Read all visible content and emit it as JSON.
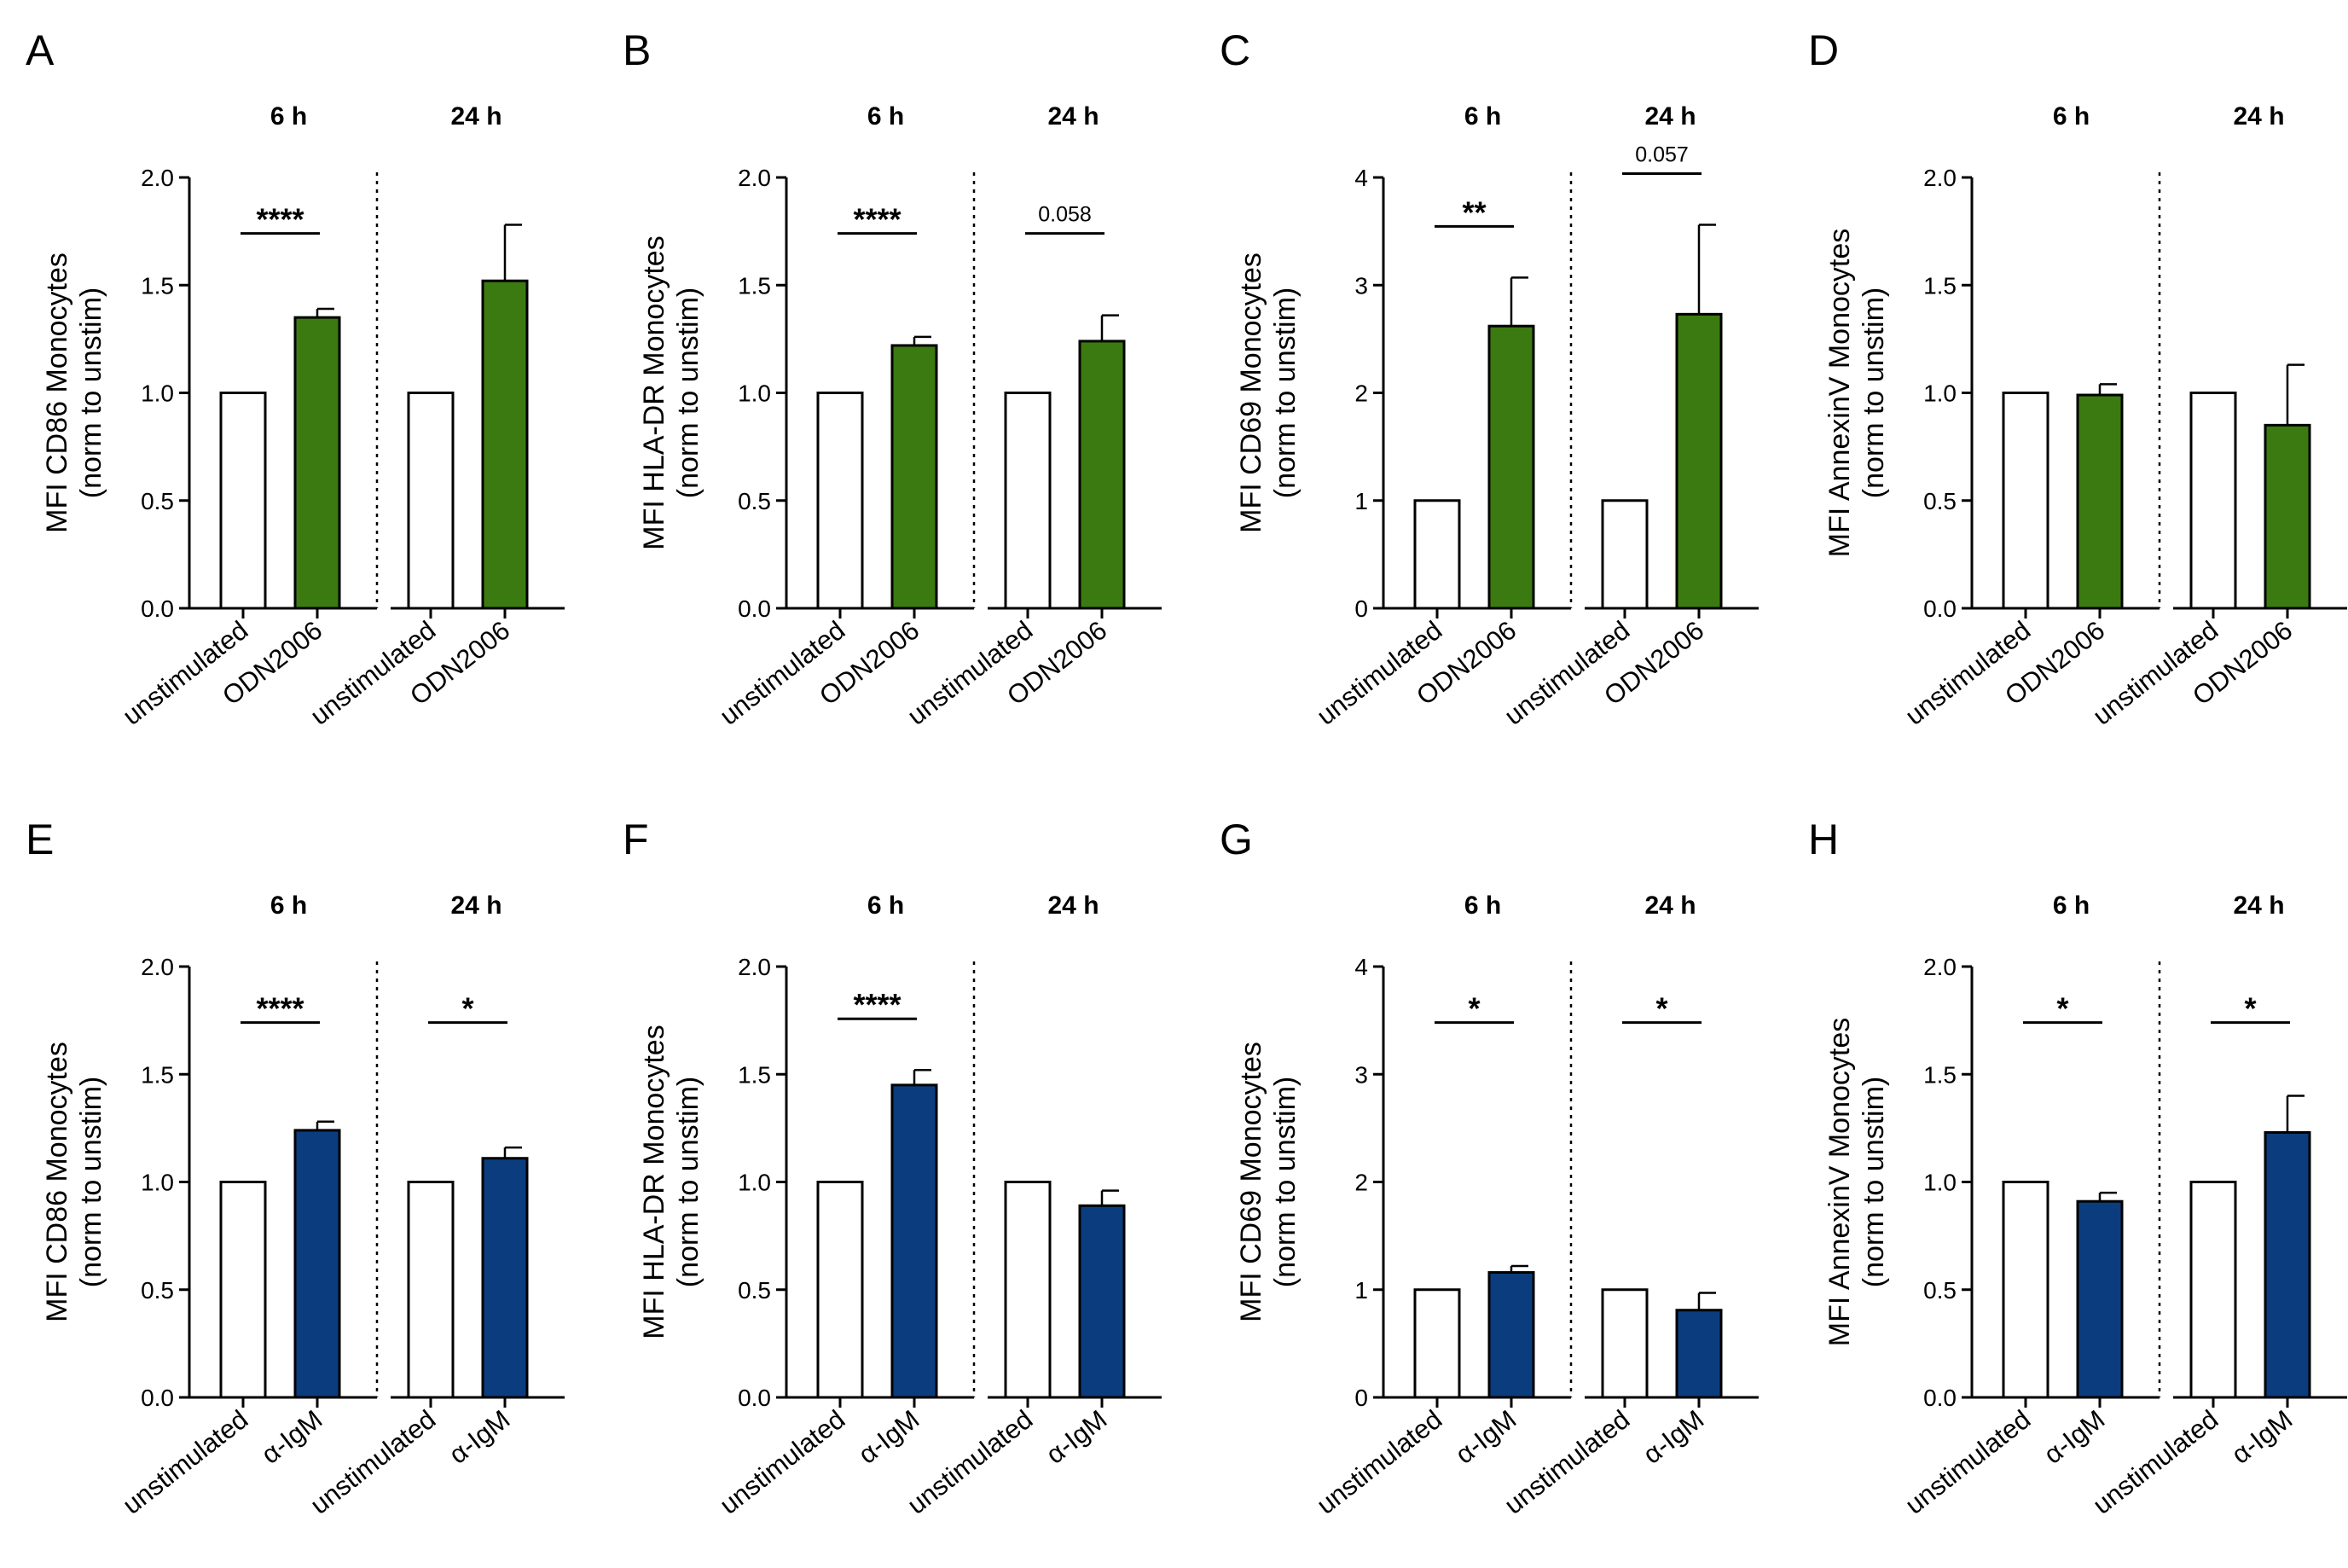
{
  "colors": {
    "unstimulated": "#ffffff",
    "ODN2006": "#3b7a10",
    "alpha_IgM": "#0b3d7e",
    "axis": "#000000"
  },
  "chart_data": [
    {
      "panel": "A",
      "type": "bar",
      "ylabel": [
        "MFI CD86 Monocytes",
        "(norm to unstim)"
      ],
      "ylim": [
        0,
        2.0
      ],
      "yticks": [
        "0.0",
        "0.5",
        "1.0",
        "1.5",
        "2.0"
      ],
      "groups": [
        {
          "time": "6 h",
          "significance": "****",
          "bars": [
            {
              "label": "unstimulated",
              "value": 1.0,
              "error": 0,
              "color_key": "unstimulated"
            },
            {
              "label": "ODN2006",
              "value": 1.35,
              "error": 0.04,
              "color_key": "ODN2006"
            }
          ]
        },
        {
          "time": "24 h",
          "significance": "",
          "bars": [
            {
              "label": "unstimulated",
              "value": 1.0,
              "error": 0,
              "color_key": "unstimulated"
            },
            {
              "label": "ODN2006",
              "value": 1.52,
              "error": 0.26,
              "color_key": "ODN2006"
            }
          ]
        }
      ]
    },
    {
      "panel": "B",
      "type": "bar",
      "ylabel": [
        "MFI HLA-DR Monocytes",
        "(norm to unstim)"
      ],
      "ylim": [
        0,
        2.0
      ],
      "yticks": [
        "0.0",
        "0.5",
        "1.0",
        "1.5",
        "2.0"
      ],
      "groups": [
        {
          "time": "6 h",
          "significance": "****",
          "bars": [
            {
              "label": "unstimulated",
              "value": 1.0,
              "error": 0,
              "color_key": "unstimulated"
            },
            {
              "label": "ODN2006",
              "value": 1.22,
              "error": 0.04,
              "color_key": "ODN2006"
            }
          ]
        },
        {
          "time": "24 h",
          "significance": "0.058",
          "bars": [
            {
              "label": "unstimulated",
              "value": 1.0,
              "error": 0,
              "color_key": "unstimulated"
            },
            {
              "label": "ODN2006",
              "value": 1.24,
              "error": 0.12,
              "color_key": "ODN2006"
            }
          ]
        }
      ]
    },
    {
      "panel": "C",
      "type": "bar",
      "ylabel": [
        "MFI CD69 Monocytes",
        "(norm to unstim)"
      ],
      "ylim": [
        0,
        4
      ],
      "yticks": [
        "0",
        "1",
        "2",
        "3",
        "4"
      ],
      "groups": [
        {
          "time": "6 h",
          "significance": "**",
          "bars": [
            {
              "label": "unstimulated",
              "value": 1.0,
              "error": 0,
              "color_key": "unstimulated"
            },
            {
              "label": "ODN2006",
              "value": 2.62,
              "error": 0.45,
              "color_key": "ODN2006"
            }
          ]
        },
        {
          "time": "24 h",
          "significance": "0.057",
          "bars": [
            {
              "label": "unstimulated",
              "value": 1.0,
              "error": 0,
              "color_key": "unstimulated"
            },
            {
              "label": "ODN2006",
              "value": 2.73,
              "error": 0.83,
              "color_key": "ODN2006"
            }
          ]
        }
      ]
    },
    {
      "panel": "D",
      "type": "bar",
      "ylabel": [
        "MFI AnnexinV Monocytes",
        "(norm to unstim)"
      ],
      "ylim": [
        0,
        2.0
      ],
      "yticks": [
        "0.0",
        "0.5",
        "1.0",
        "1.5",
        "2.0"
      ],
      "groups": [
        {
          "time": "6 h",
          "significance": "",
          "bars": [
            {
              "label": "unstimulated",
              "value": 1.0,
              "error": 0,
              "color_key": "unstimulated"
            },
            {
              "label": "ODN2006",
              "value": 0.99,
              "error": 0.05,
              "color_key": "ODN2006"
            }
          ]
        },
        {
          "time": "24 h",
          "significance": "",
          "bars": [
            {
              "label": "unstimulated",
              "value": 1.0,
              "error": 0,
              "color_key": "unstimulated"
            },
            {
              "label": "ODN2006",
              "value": 0.85,
              "error": 0.28,
              "color_key": "ODN2006"
            }
          ]
        }
      ]
    },
    {
      "panel": "E",
      "type": "bar",
      "ylabel": [
        "MFI CD86 Monocytes",
        "(norm to unstim)"
      ],
      "ylim": [
        0,
        2.0
      ],
      "yticks": [
        "0.0",
        "0.5",
        "1.0",
        "1.5",
        "2.0"
      ],
      "groups": [
        {
          "time": "6 h",
          "significance": "****",
          "bars": [
            {
              "label": "unstimulated",
              "value": 1.0,
              "error": 0,
              "color_key": "unstimulated"
            },
            {
              "label": "α-IgM",
              "value": 1.24,
              "error": 0.04,
              "color_key": "alpha_IgM"
            }
          ]
        },
        {
          "time": "24 h",
          "significance": "*",
          "bars": [
            {
              "label": "unstimulated",
              "value": 1.0,
              "error": 0,
              "color_key": "unstimulated"
            },
            {
              "label": "α-IgM",
              "value": 1.11,
              "error": 0.05,
              "color_key": "alpha_IgM"
            }
          ]
        }
      ]
    },
    {
      "panel": "F",
      "type": "bar",
      "ylabel": [
        "MFI HLA-DR Monocytes",
        "(norm to unstim)"
      ],
      "ylim": [
        0,
        2.0
      ],
      "yticks": [
        "0.0",
        "0.5",
        "1.0",
        "1.5",
        "2.0"
      ],
      "groups": [
        {
          "time": "6 h",
          "significance": "****",
          "bars": [
            {
              "label": "unstimulated",
              "value": 1.0,
              "error": 0,
              "color_key": "unstimulated"
            },
            {
              "label": "α-IgM",
              "value": 1.45,
              "error": 0.07,
              "color_key": "alpha_IgM"
            }
          ]
        },
        {
          "time": "24 h",
          "significance": "",
          "bars": [
            {
              "label": "unstimulated",
              "value": 1.0,
              "error": 0,
              "color_key": "unstimulated"
            },
            {
              "label": "α-IgM",
              "value": 0.89,
              "error": 0.07,
              "color_key": "alpha_IgM"
            }
          ]
        }
      ]
    },
    {
      "panel": "G",
      "type": "bar",
      "ylabel": [
        "MFI CD69 Monocytes",
        "(norm to unstim)"
      ],
      "ylim": [
        0,
        4
      ],
      "yticks": [
        "0",
        "1",
        "2",
        "3",
        "4"
      ],
      "groups": [
        {
          "time": "6 h",
          "significance": "*",
          "bars": [
            {
              "label": "unstimulated",
              "value": 1.0,
              "error": 0,
              "color_key": "unstimulated"
            },
            {
              "label": "α-IgM",
              "value": 1.16,
              "error": 0.06,
              "color_key": "alpha_IgM"
            }
          ]
        },
        {
          "time": "24 h",
          "significance": "*",
          "bars": [
            {
              "label": "unstimulated",
              "value": 1.0,
              "error": 0,
              "color_key": "unstimulated"
            },
            {
              "label": "α-IgM",
              "value": 0.81,
              "error": 0.16,
              "color_key": "alpha_IgM"
            }
          ]
        }
      ]
    },
    {
      "panel": "H",
      "type": "bar",
      "ylabel": [
        "MFI AnnexinV Monocytes",
        "(norm to unstim)"
      ],
      "ylim": [
        0,
        2.0
      ],
      "yticks": [
        "0.0",
        "0.5",
        "1.0",
        "1.5",
        "2.0"
      ],
      "groups": [
        {
          "time": "6 h",
          "significance": "*",
          "bars": [
            {
              "label": "unstimulated",
              "value": 1.0,
              "error": 0,
              "color_key": "unstimulated"
            },
            {
              "label": "α-IgM",
              "value": 0.91,
              "error": 0.04,
              "color_key": "alpha_IgM"
            }
          ]
        },
        {
          "time": "24 h",
          "significance": "*",
          "bars": [
            {
              "label": "unstimulated",
              "value": 1.0,
              "error": 0,
              "color_key": "unstimulated"
            },
            {
              "label": "α-IgM",
              "value": 1.23,
              "error": 0.17,
              "color_key": "alpha_IgM"
            }
          ]
        }
      ]
    }
  ]
}
